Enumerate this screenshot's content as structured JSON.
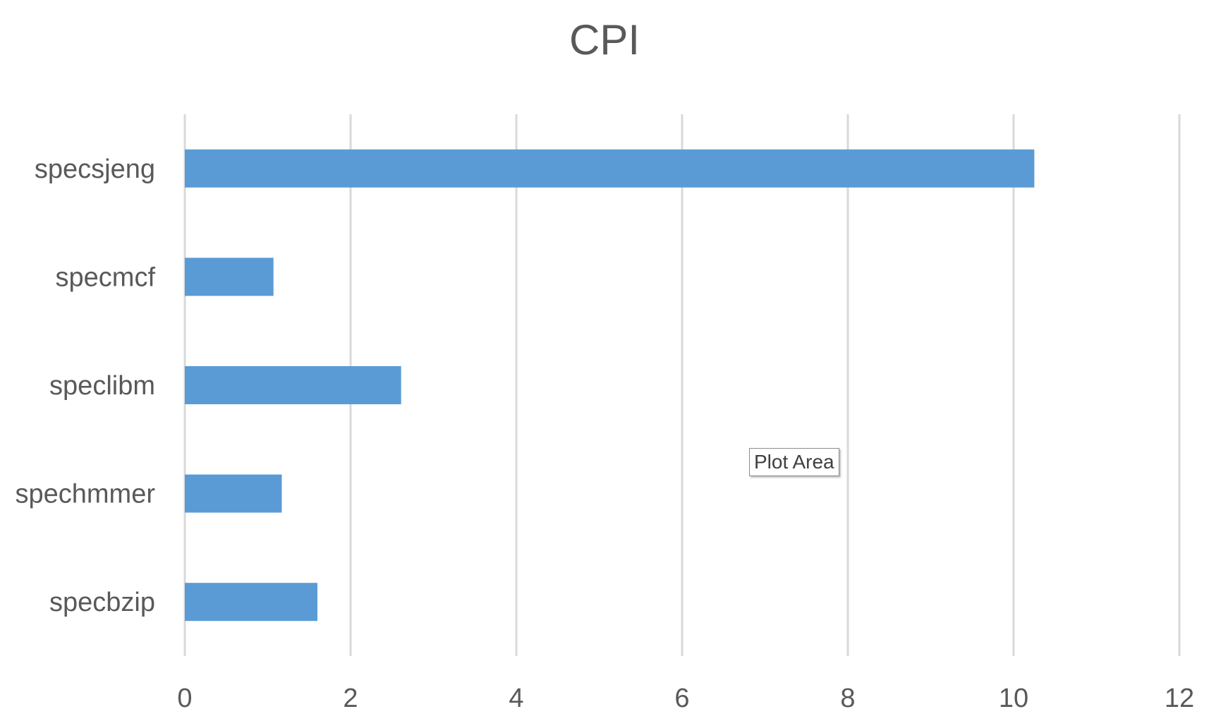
{
  "chart_data": {
    "type": "bar",
    "orientation": "horizontal",
    "title": "CPI",
    "categories": [
      "specsjeng",
      "specmcf",
      "speclibm",
      "spechmmer",
      "specbzip"
    ],
    "values": [
      10.25,
      1.07,
      2.61,
      1.17,
      1.6
    ],
    "xlim": [
      0,
      12
    ],
    "x_ticks": [
      "0",
      "2",
      "4",
      "6",
      "8",
      "10",
      "12"
    ],
    "grid": "vertical",
    "bar_color": "#5b9bd5",
    "grid_color": "#d9d9d9",
    "text_color": "#595959"
  },
  "tooltip": {
    "text": "Plot Area"
  }
}
